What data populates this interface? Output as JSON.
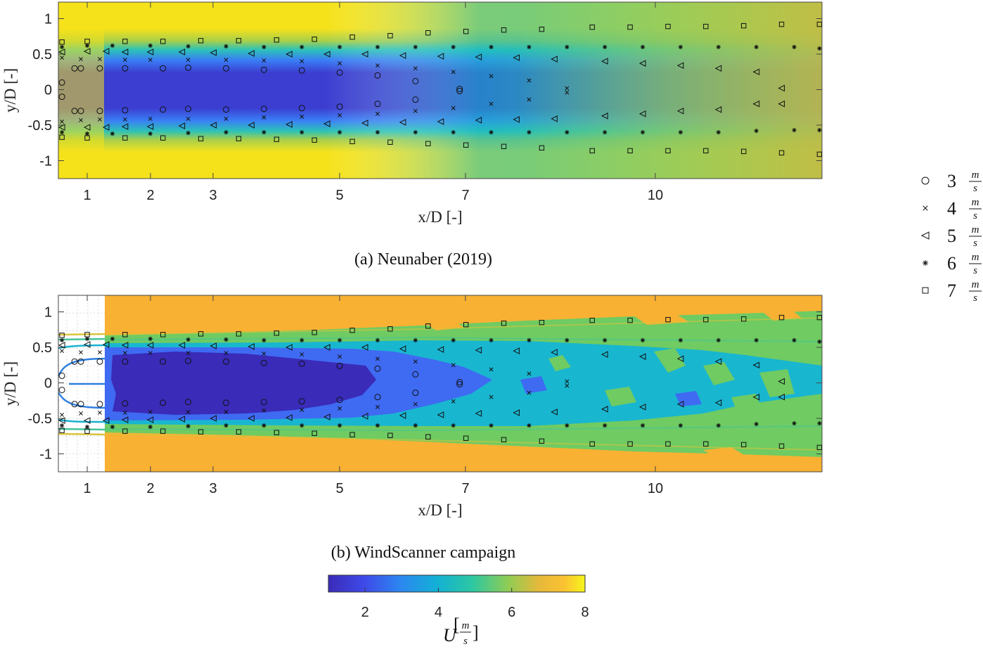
{
  "chart_data": [
    {
      "type": "heatmap",
      "caption": "(a) Neunaber (2019)",
      "xlabel": "x/D [-]",
      "ylabel": "y/D [-]",
      "xlim": [
        0.55,
        12.6
      ],
      "ylim": [
        -1.25,
        1.25
      ],
      "xticks": [
        "1",
        "2",
        "3",
        "5",
        "7",
        "10"
      ],
      "yticks": [
        "1",
        "0.5",
        "0",
        "-0.5",
        "-1"
      ],
      "field": "wake velocity deficit contour, U ≈ 1.3 m/s at wake center near x/D=2–5, recovering to ≈ 5 m/s by x/D=12; free stream ≈ 7.5–8 m/s",
      "series": [
        {
          "name": "3 m/s",
          "marker": "circle",
          "x": [
            0.6,
            0.8,
            0.9,
            1.2,
            1.6,
            2.2,
            2.6,
            3.2,
            3.8,
            4.4,
            5.0,
            5.6,
            6.2,
            6.9
          ],
          "y_upper": [
            0.1,
            0.3,
            0.3,
            0.3,
            0.3,
            0.3,
            0.31,
            0.3,
            0.28,
            0.27,
            0.24,
            0.2,
            0.12,
            0.01
          ],
          "y_lower": [
            -0.1,
            -0.3,
            -0.3,
            -0.3,
            -0.29,
            -0.28,
            -0.27,
            -0.28,
            -0.27,
            -0.26,
            -0.24,
            -0.2,
            -0.14,
            -0.02
          ]
        },
        {
          "name": "4 m/s",
          "marker": "x",
          "x": [
            0.6,
            0.9,
            1.2,
            1.6,
            2.0,
            2.6,
            3.2,
            3.8,
            4.4,
            5.0,
            5.6,
            6.2,
            6.8,
            7.4,
            8.0,
            8.6
          ],
          "y_upper": [
            0.45,
            0.43,
            0.43,
            0.42,
            0.42,
            0.42,
            0.42,
            0.41,
            0.4,
            0.37,
            0.34,
            0.3,
            0.25,
            0.19,
            0.13,
            0.02
          ],
          "y_lower": [
            -0.45,
            -0.43,
            -0.42,
            -0.42,
            -0.41,
            -0.41,
            -0.41,
            -0.39,
            -0.38,
            -0.36,
            -0.34,
            -0.3,
            -0.26,
            -0.2,
            -0.14,
            -0.04
          ]
        },
        {
          "name": "5 m/s",
          "marker": "triangle-left",
          "x": [
            0.6,
            1.0,
            1.3,
            1.6,
            2.0,
            2.5,
            3.0,
            3.6,
            4.2,
            4.8,
            5.4,
            6.0,
            6.6,
            7.2,
            7.8,
            8.4,
            9.2,
            9.8,
            10.4,
            11.0,
            11.6,
            12.0
          ],
          "y_upper": [
            0.53,
            0.54,
            0.54,
            0.53,
            0.53,
            0.53,
            0.52,
            0.51,
            0.5,
            0.5,
            0.5,
            0.48,
            0.47,
            0.46,
            0.45,
            0.43,
            0.4,
            0.37,
            0.34,
            0.3,
            0.25,
            0.02
          ],
          "y_lower": [
            -0.53,
            -0.53,
            -0.53,
            -0.52,
            -0.52,
            -0.51,
            -0.5,
            -0.5,
            -0.49,
            -0.48,
            -0.47,
            -0.46,
            -0.45,
            -0.43,
            -0.42,
            -0.41,
            -0.37,
            -0.34,
            -0.3,
            -0.28,
            -0.2,
            -0.2
          ]
        },
        {
          "name": "6 m/s",
          "marker": "asterisk",
          "x": [
            0.6,
            1.0,
            1.4,
            2.0,
            2.6,
            3.2,
            3.8,
            4.4,
            5.0,
            5.6,
            6.2,
            6.8,
            7.4,
            8.0,
            8.6,
            9.2,
            9.8,
            10.4,
            11.0,
            11.6,
            12.2,
            12.6
          ],
          "y_upper": [
            0.6,
            0.62,
            0.62,
            0.62,
            0.61,
            0.61,
            0.6,
            0.6,
            0.6,
            0.6,
            0.6,
            0.6,
            0.6,
            0.6,
            0.6,
            0.6,
            0.6,
            0.6,
            0.6,
            0.6,
            0.6,
            0.58
          ],
          "y_lower": [
            -0.6,
            -0.62,
            -0.62,
            -0.62,
            -0.61,
            -0.6,
            -0.6,
            -0.6,
            -0.6,
            -0.6,
            -0.6,
            -0.6,
            -0.6,
            -0.6,
            -0.6,
            -0.6,
            -0.6,
            -0.6,
            -0.6,
            -0.58,
            -0.57,
            -0.57
          ]
        },
        {
          "name": "7 m/s",
          "marker": "square",
          "x": [
            0.6,
            1.0,
            1.6,
            2.2,
            2.8,
            3.4,
            4.0,
            4.6,
            5.2,
            5.8,
            6.4,
            7.0,
            7.6,
            8.2,
            9.0,
            9.6,
            10.2,
            10.8,
            11.4,
            12.0,
            12.6
          ],
          "y_upper": [
            0.67,
            0.68,
            0.68,
            0.68,
            0.69,
            0.69,
            0.7,
            0.71,
            0.74,
            0.76,
            0.8,
            0.82,
            0.84,
            0.85,
            0.88,
            0.88,
            0.89,
            0.89,
            0.9,
            0.92,
            0.92
          ],
          "y_lower": [
            -0.67,
            -0.68,
            -0.68,
            -0.68,
            -0.69,
            -0.69,
            -0.7,
            -0.71,
            -0.73,
            -0.74,
            -0.76,
            -0.78,
            -0.8,
            -0.82,
            -0.86,
            -0.86,
            -0.86,
            -0.86,
            -0.87,
            -0.89,
            -0.91
          ]
        }
      ]
    },
    {
      "type": "heatmap",
      "caption": "(b) WindScanner campaign",
      "xlabel": "x/D [-]",
      "ylabel": "y/D [-]",
      "xlim": [
        0.55,
        12.6
      ],
      "ylim": [
        -1.25,
        1.25
      ],
      "xticks": [
        "1",
        "2",
        "3",
        "5",
        "7",
        "10"
      ],
      "yticks": [
        "1",
        "0.5",
        "0",
        "-0.5",
        "-1"
      ],
      "field": "measured contour bands; no data for x/D < 1.3; wake core ≈ 2 m/s for x/D 1.5–4.5, ≈ 3 m/s to x/D 5.5, ≈ 4 m/s beyond; free stream ≈ 7 m/s"
    }
  ],
  "legend": [
    {
      "marker": "circle",
      "value": "3",
      "unit_num": "m",
      "unit_den": "s"
    },
    {
      "marker": "x",
      "value": "4",
      "unit_num": "m",
      "unit_den": "s"
    },
    {
      "marker": "triangle-left",
      "value": "5",
      "unit_num": "m",
      "unit_den": "s"
    },
    {
      "marker": "asterisk",
      "value": "6",
      "unit_num": "m",
      "unit_den": "s"
    },
    {
      "marker": "square",
      "value": "7",
      "unit_num": "m",
      "unit_den": "s"
    }
  ],
  "colorbar": {
    "range": [
      1,
      8
    ],
    "ticks": [
      "2",
      "4",
      "6",
      "8"
    ],
    "label_var": "U",
    "label_num": "m",
    "label_den": "s",
    "colors": [
      "#3a2bb8",
      "#3f5cf5",
      "#1aa6e0",
      "#18c3a8",
      "#6fcb62",
      "#d7b83d",
      "#fbb532",
      "#f5e21b"
    ]
  }
}
